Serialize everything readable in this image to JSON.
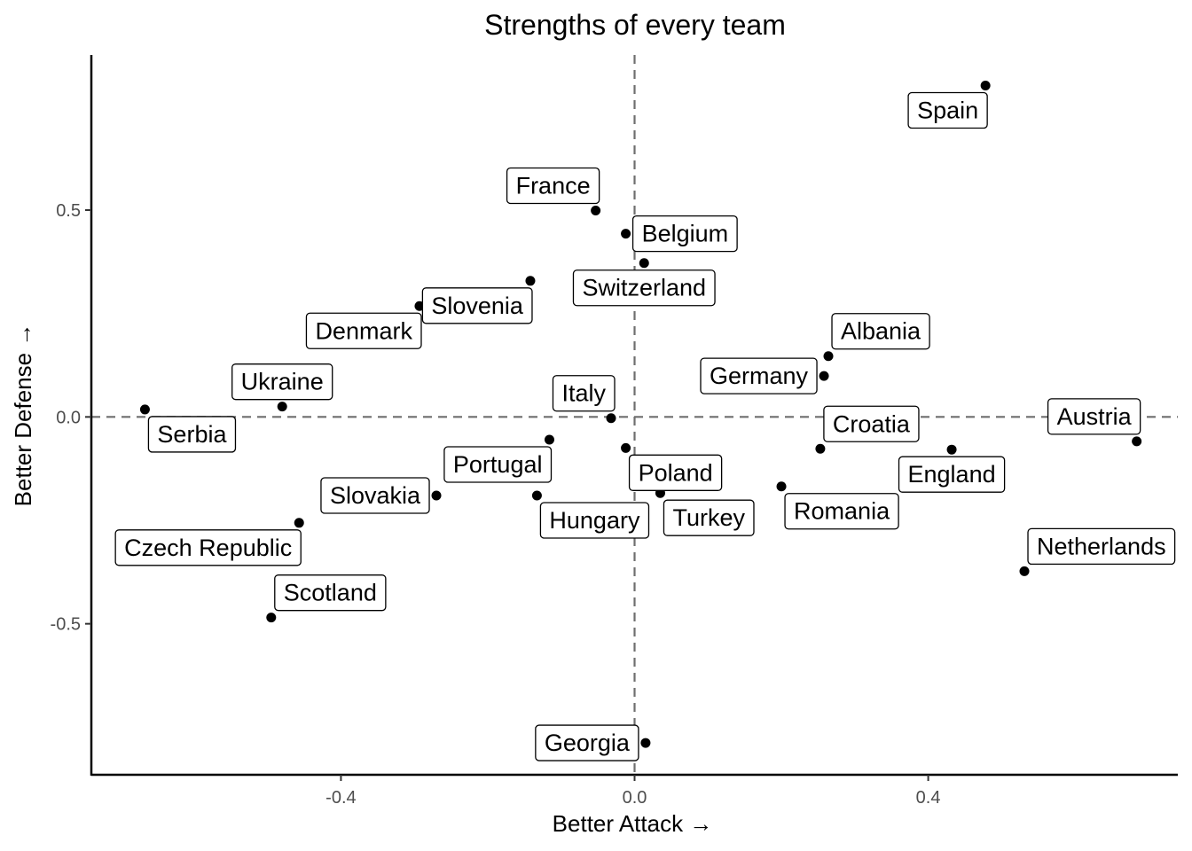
{
  "chart_data": {
    "type": "scatter",
    "title": "Strengths of every team",
    "xlabel": "Better Attack →",
    "ylabel": "Better Defense →",
    "xlim": [
      -0.74,
      0.74
    ],
    "ylim": [
      -0.865,
      0.875
    ],
    "xticks": [
      -0.4,
      0.0,
      0.4
    ],
    "xtick_labels": [
      "-0.4",
      "0.0",
      "0.4"
    ],
    "yticks": [
      -0.5,
      0.0,
      0.5
    ],
    "ytick_labels": [
      "-0.5",
      "0.0",
      "0.5"
    ],
    "reference_lines": {
      "x": 0.0,
      "y": 0.0,
      "style": "dashed"
    },
    "grid": false,
    "legend": "none",
    "points": [
      {
        "label": "Spain",
        "x": 0.478,
        "y": 0.801,
        "label_pos": "bottom-left"
      },
      {
        "label": "France",
        "x": -0.053,
        "y": 0.499,
        "label_pos": "top-left"
      },
      {
        "label": "Belgium",
        "x": -0.012,
        "y": 0.443,
        "label_pos": "right"
      },
      {
        "label": "Switzerland",
        "x": 0.013,
        "y": 0.372,
        "label_pos": "bottom"
      },
      {
        "label": "Slovenia",
        "x": -0.142,
        "y": 0.329,
        "label_pos": "bottom-left"
      },
      {
        "label": "Denmark",
        "x": -0.293,
        "y": 0.268,
        "label_pos": "bottom-left"
      },
      {
        "label": "Albania",
        "x": 0.264,
        "y": 0.147,
        "label_pos": "top-right"
      },
      {
        "label": "Germany",
        "x": 0.258,
        "y": 0.099,
        "label_pos": "left"
      },
      {
        "label": "Ukraine",
        "x": -0.48,
        "y": 0.025,
        "label_pos": "top"
      },
      {
        "label": "Serbia",
        "x": -0.667,
        "y": 0.018,
        "label_pos": "bottom-right"
      },
      {
        "label": "Italy",
        "x": -0.032,
        "y": -0.003,
        "label_pos": "top-left"
      },
      {
        "label": "Austria",
        "x": 0.684,
        "y": -0.059,
        "label_pos": "top-left"
      },
      {
        "label": "Croatia",
        "x": 0.253,
        "y": -0.077,
        "label_pos": "top-right"
      },
      {
        "label": "Portugal",
        "x": -0.116,
        "y": -0.055,
        "label_pos": "bottom-left"
      },
      {
        "label": "Poland",
        "x": -0.012,
        "y": -0.075,
        "label_pos": "bottom-right"
      },
      {
        "label": "England",
        "x": 0.432,
        "y": -0.079,
        "label_pos": "bottom"
      },
      {
        "label": "Romania",
        "x": 0.2,
        "y": -0.168,
        "label_pos": "bottom-right"
      },
      {
        "label": "Turkey",
        "x": 0.035,
        "y": -0.184,
        "label_pos": "bottom-right"
      },
      {
        "label": "Slovakia",
        "x": -0.27,
        "y": -0.19,
        "label_pos": "left"
      },
      {
        "label": "Hungary",
        "x": -0.133,
        "y": -0.19,
        "label_pos": "bottom-right"
      },
      {
        "label": "Czech Republic",
        "x": -0.457,
        "y": -0.256,
        "label_pos": "bottom-left"
      },
      {
        "label": "Netherlands",
        "x": 0.531,
        "y": -0.373,
        "label_pos": "top-right"
      },
      {
        "label": "Scotland",
        "x": -0.495,
        "y": -0.485,
        "label_pos": "top-right"
      },
      {
        "label": "Georgia",
        "x": 0.015,
        "y": -0.788,
        "label_pos": "left"
      }
    ]
  }
}
